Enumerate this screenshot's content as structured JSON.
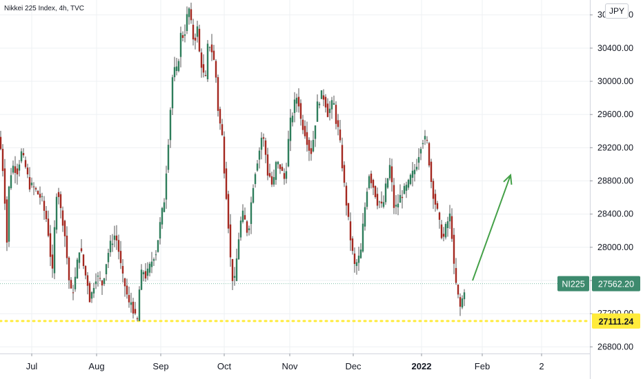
{
  "header": {
    "title": "Nikkei 225 Index, 4h, TVC",
    "currency": "JPY"
  },
  "badges": {
    "symbol": "NI225",
    "last_price": "27562.20",
    "support_price": "27111.24"
  },
  "colors": {
    "up": "#26a69a",
    "down": "#b71c1c",
    "up_body": "#2e7d5b",
    "down_body": "#a3271f",
    "arrow": "#43a047",
    "support": "#ffeb3b",
    "badge_green": "#3d8a6e",
    "axis_text": "#131722",
    "grid": "#eef0f3"
  },
  "chart_data": {
    "type": "candlestick",
    "title": "Nikkei 225 Index, 4h, TVC",
    "ylim": [
      26720,
      30980
    ],
    "y_ticks": [
      "30800.00",
      "30400.00",
      "30000.00",
      "29600.00",
      "29200.00",
      "28800.00",
      "28400.00",
      "28000.00",
      "27600.00",
      "27200.00",
      "26800.00"
    ],
    "y_tick_values": [
      30800,
      30400,
      30000,
      29600,
      29200,
      28800,
      28400,
      28000,
      27600,
      27200,
      26800
    ],
    "x_ticks": [
      "Jul",
      "Aug",
      "Sep",
      "Oct",
      "Nov",
      "Dec",
      "2022",
      "Feb",
      "2"
    ],
    "x_tick_pos": [
      46,
      140,
      233,
      325,
      420,
      512,
      611,
      699,
      785
    ],
    "support_level": 27111.24,
    "last_price": 27562.2,
    "projection_arrow": {
      "from": [
        685,
        27600
      ],
      "to": [
        740,
        28870
      ]
    },
    "anchors": [
      [
        0,
        29330
      ],
      [
        4,
        29100
      ],
      [
        8,
        28700
      ],
      [
        11,
        27960
      ],
      [
        15,
        28820
      ],
      [
        20,
        28980
      ],
      [
        27,
        28920
      ],
      [
        32,
        29150
      ],
      [
        38,
        28980
      ],
      [
        44,
        28750
      ],
      [
        50,
        28720
      ],
      [
        56,
        28650
      ],
      [
        62,
        28580
      ],
      [
        66,
        28420
      ],
      [
        70,
        28300
      ],
      [
        74,
        27950
      ],
      [
        78,
        27650
      ],
      [
        82,
        28550
      ],
      [
        85,
        28780
      ],
      [
        88,
        28500
      ],
      [
        92,
        28350
      ],
      [
        97,
        28050
      ],
      [
        100,
        27700
      ],
      [
        104,
        27450
      ],
      [
        108,
        27500
      ],
      [
        112,
        27700
      ],
      [
        116,
        28000
      ],
      [
        120,
        27900
      ],
      [
        124,
        27700
      ],
      [
        128,
        27600
      ],
      [
        132,
        27350
      ],
      [
        136,
        27500
      ],
      [
        140,
        27650
      ],
      [
        145,
        27620
      ],
      [
        150,
        27550
      ],
      [
        155,
        27800
      ],
      [
        160,
        28000
      ],
      [
        164,
        28080
      ],
      [
        168,
        28150
      ],
      [
        172,
        28050
      ],
      [
        176,
        27800
      ],
      [
        180,
        27600
      ],
      [
        184,
        27500
      ],
      [
        188,
        27300
      ],
      [
        192,
        27350
      ],
      [
        196,
        27200
      ],
      [
        200,
        27050
      ],
      [
        204,
        27550
      ],
      [
        208,
        27750
      ],
      [
        212,
        27650
      ],
      [
        216,
        27700
      ],
      [
        220,
        27800
      ],
      [
        224,
        27900
      ],
      [
        228,
        27950
      ],
      [
        232,
        28200
      ],
      [
        236,
        28400
      ],
      [
        240,
        28600
      ],
      [
        243,
        29000
      ],
      [
        246,
        29350
      ],
      [
        248,
        29600
      ],
      [
        250,
        29900
      ],
      [
        253,
        30200
      ],
      [
        256,
        30050
      ],
      [
        260,
        30250
      ],
      [
        264,
        30600
      ],
      [
        268,
        30520
      ],
      [
        272,
        30750
      ],
      [
        275,
        30900
      ],
      [
        279,
        30650
      ],
      [
        283,
        30450
      ],
      [
        287,
        30680
      ],
      [
        291,
        30300
      ],
      [
        295,
        30150
      ],
      [
        299,
        29950
      ],
      [
        302,
        30400
      ],
      [
        306,
        30450
      ],
      [
        310,
        30320
      ],
      [
        314,
        30120
      ],
      [
        317,
        29700
      ],
      [
        320,
        29500
      ],
      [
        323,
        29400
      ],
      [
        326,
        29000
      ],
      [
        329,
        28700
      ],
      [
        332,
        28350
      ],
      [
        335,
        27900
      ],
      [
        338,
        27650
      ],
      [
        341,
        27550
      ],
      [
        345,
        27900
      ],
      [
        349,
        28250
      ],
      [
        353,
        28400
      ],
      [
        357,
        28300
      ],
      [
        361,
        28150
      ],
      [
        365,
        28500
      ],
      [
        369,
        28800
      ],
      [
        373,
        29000
      ],
      [
        377,
        29150
      ],
      [
        381,
        29350
      ],
      [
        385,
        29250
      ],
      [
        389,
        28900
      ],
      [
        393,
        28850
      ],
      [
        397,
        28700
      ],
      [
        401,
        29000
      ],
      [
        405,
        29000
      ],
      [
        409,
        28950
      ],
      [
        413,
        28800
      ],
      [
        417,
        29000
      ],
      [
        421,
        29450
      ],
      [
        425,
        29600
      ],
      [
        429,
        29750
      ],
      [
        433,
        29850
      ],
      [
        437,
        29550
      ],
      [
        441,
        29450
      ],
      [
        445,
        29350
      ],
      [
        449,
        29200
      ],
      [
        453,
        29150
      ],
      [
        457,
        29400
      ],
      [
        461,
        29700
      ],
      [
        465,
        29800
      ],
      [
        469,
        29850
      ],
      [
        473,
        29750
      ],
      [
        477,
        29600
      ],
      [
        481,
        29700
      ],
      [
        485,
        29750
      ],
      [
        488,
        29550
      ],
      [
        492,
        29400
      ],
      [
        495,
        29200
      ],
      [
        498,
        28950
      ],
      [
        501,
        28700
      ],
      [
        504,
        28500
      ],
      [
        508,
        28200
      ],
      [
        512,
        27950
      ],
      [
        516,
        27750
      ],
      [
        520,
        27850
      ],
      [
        524,
        27900
      ],
      [
        528,
        28300
      ],
      [
        532,
        28600
      ],
      [
        536,
        28900
      ],
      [
        540,
        28800
      ],
      [
        544,
        28700
      ],
      [
        548,
        28550
      ],
      [
        552,
        28550
      ],
      [
        556,
        28450
      ],
      [
        560,
        28700
      ],
      [
        564,
        28850
      ],
      [
        567,
        29000
      ],
      [
        570,
        28700
      ],
      [
        573,
        28450
      ],
      [
        577,
        28500
      ],
      [
        581,
        28600
      ],
      [
        585,
        28650
      ],
      [
        589,
        28700
      ],
      [
        593,
        28750
      ],
      [
        597,
        28850
      ],
      [
        601,
        28900
      ],
      [
        605,
        29000
      ],
      [
        609,
        29150
      ],
      [
        613,
        29300
      ],
      [
        617,
        29300
      ],
      [
        621,
        29250
      ],
      [
        625,
        28900
      ],
      [
        628,
        28700
      ],
      [
        632,
        28550
      ],
      [
        636,
        28400
      ],
      [
        640,
        28200
      ],
      [
        644,
        28100
      ],
      [
        648,
        28250
      ],
      [
        652,
        28350
      ],
      [
        655,
        28400
      ],
      [
        658,
        27900
      ],
      [
        661,
        27600
      ],
      [
        664,
        27500
      ],
      [
        667,
        27300
      ],
      [
        670,
        27250
      ],
      [
        673,
        27500
      ]
    ]
  }
}
